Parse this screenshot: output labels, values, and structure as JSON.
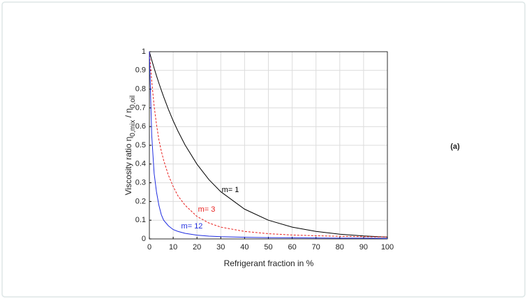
{
  "chart_data": {
    "type": "line",
    "ylabel": [
      "Viscosity ratio η",
      "0,mix",
      " / η",
      "0,oil"
    ],
    "xlabel": "Refrigerant fraction in %",
    "annotation": "(a)",
    "x": [
      0,
      1,
      2,
      3,
      4,
      5,
      6,
      8,
      10,
      12,
      15,
      20,
      25,
      30,
      40,
      50,
      60,
      70,
      80,
      90,
      100
    ],
    "series": [
      {
        "name": "m= 1",
        "color": "#000000",
        "dash": false,
        "values": [
          1,
          0.955,
          0.912,
          0.871,
          0.832,
          0.795,
          0.759,
          0.692,
          0.631,
          0.576,
          0.502,
          0.399,
          0.317,
          0.252,
          0.159,
          0.1,
          0.063,
          0.04,
          0.025,
          0.016,
          0.01
        ]
      },
      {
        "name": "m= 3",
        "color": "#e8201e",
        "dash": true,
        "values": [
          1,
          0.84,
          0.71,
          0.61,
          0.53,
          0.47,
          0.42,
          0.34,
          0.28,
          0.23,
          0.18,
          0.12,
          0.085,
          0.063,
          0.04,
          0.028,
          0.021,
          0.017,
          0.014,
          0.012,
          0.01
        ]
      },
      {
        "name": "m= 12",
        "color": "#1f2de0",
        "dash": false,
        "values": [
          1,
          0.55,
          0.35,
          0.25,
          0.18,
          0.13,
          0.1,
          0.07,
          0.05,
          0.04,
          0.03,
          0.02,
          0.015,
          0.012,
          0.009,
          0.007,
          0.006,
          0.005,
          0.004,
          0.004,
          0.003
        ]
      }
    ],
    "xlim": [
      0,
      100
    ],
    "xticks": [
      0,
      10,
      20,
      30,
      40,
      50,
      60,
      70,
      80,
      90,
      100
    ],
    "ylim": [
      0,
      1
    ],
    "yticks": [
      0,
      0.1,
      0.2,
      0.3,
      0.4,
      0.5,
      0.6,
      0.7,
      0.8,
      0.9,
      1
    ],
    "grid": true
  }
}
